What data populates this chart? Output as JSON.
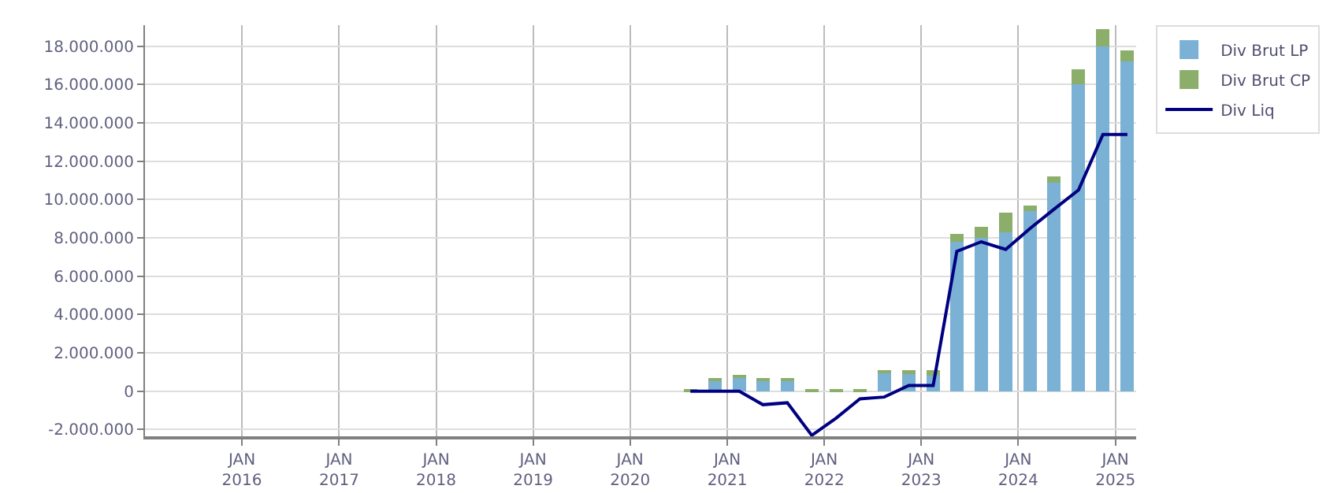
{
  "chart_data": {
    "type": "bar",
    "stacked": true,
    "grid": true,
    "legend": "top right",
    "x": [
      "2020-08-15",
      "2020-11-15",
      "2021-02-15",
      "2021-05-15",
      "2021-08-15",
      "2021-11-15",
      "2022-02-15",
      "2022-05-15",
      "2022-08-15",
      "2022-11-15",
      "2023-02-15",
      "2023-05-15",
      "2023-08-15",
      "2023-11-15",
      "2024-02-15",
      "2024-05-15",
      "2024-08-15",
      "2024-11-15",
      "2025-02-15"
    ],
    "series": [
      {
        "name": "Div Brut LP",
        "color": "#7ab1d5",
        "values": [
          0,
          600000,
          700000,
          600000,
          600000,
          0,
          0,
          0,
          1000000,
          900000,
          800000,
          7800000,
          8000000,
          8300000,
          9400000,
          10900000,
          16000000,
          18000000,
          17200000
        ]
      },
      {
        "name": "Div Brut CP",
        "color": "#8cae6b",
        "values": [
          50000,
          100000,
          100000,
          100000,
          100000,
          50000,
          50000,
          50000,
          100000,
          200000,
          300000,
          400000,
          600000,
          1000000,
          300000,
          300000,
          800000,
          900000,
          600000
        ]
      },
      {
        "name": "Div Liq",
        "type": "line",
        "color": "#000080",
        "values": [
          0,
          0,
          0,
          -700000,
          -600000,
          -2300000,
          -1400000,
          -400000,
          -300000,
          300000,
          300000,
          7300000,
          7800000,
          7400000,
          8500000,
          9500000,
          10500000,
          13400000,
          13400000
        ]
      }
    ],
    "xlim": [
      "2015-01-01",
      "2025-03-20"
    ],
    "xticks": [
      {
        "value": "2016-01-01",
        "label": "JAN\n2016"
      },
      {
        "value": "2017-01-01",
        "label": "JAN\n2017"
      },
      {
        "value": "2018-01-01",
        "label": "JAN\n2018"
      },
      {
        "value": "2019-01-01",
        "label": "JAN\n2019"
      },
      {
        "value": "2020-01-01",
        "label": "JAN\n2020"
      },
      {
        "value": "2021-01-01",
        "label": "JAN\n2021"
      },
      {
        "value": "2022-01-01",
        "label": "JAN\n2022"
      },
      {
        "value": "2023-01-01",
        "label": "JAN\n2023"
      },
      {
        "value": "2024-01-01",
        "label": "JAN\n2024"
      },
      {
        "value": "2025-01-01",
        "label": "JAN\n2025"
      }
    ],
    "ylim": [
      -2350000,
      19100000
    ],
    "yticks": [
      {
        "value": -2000000,
        "label": "-2.000.000"
      },
      0,
      {
        "value": 2000000,
        "label": "2.000.000"
      },
      {
        "value": 4000000,
        "label": "4.000.000"
      },
      {
        "value": 6000000,
        "label": "6.000.000"
      },
      {
        "value": 8000000,
        "label": "8.000.000"
      },
      {
        "value": 10000000,
        "label": "10.000.000"
      },
      {
        "value": 12000000,
        "label": "12.000.000"
      },
      {
        "value": 14000000,
        "label": "14.000.000"
      },
      {
        "value": 16000000,
        "label": "16.000.000"
      },
      {
        "value": 18000000,
        "label": "18.000.000"
      }
    ]
  }
}
